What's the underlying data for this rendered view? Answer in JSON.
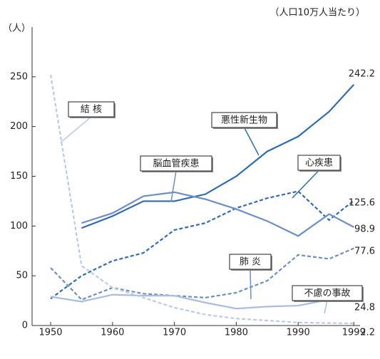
{
  "chart_data": {
    "type": "line",
    "annotations": [
      "（人口10万人当たり）",
      "（人）"
    ],
    "x": [
      1950,
      1955,
      1960,
      1965,
      1970,
      1975,
      1980,
      1985,
      1990,
      1995,
      1999
    ],
    "xlim": [
      1947,
      2000
    ],
    "xticks": [
      1950,
      1960,
      1970,
      1980,
      1990,
      1999
    ],
    "ylim": [
      0,
      300
    ],
    "yticks": [
      0,
      50,
      100,
      150,
      200,
      250
    ],
    "series": [
      {
        "name": "悪性新生物",
        "color": "#2e6db4",
        "style": "solid",
        "values": [
          null,
          98,
          110,
          125,
          125,
          132,
          150,
          175,
          190,
          215,
          242.2
        ]
      },
      {
        "name": "心疾患",
        "color": "#2e6db4",
        "style": "dashed",
        "values": [
          27,
          50,
          65,
          73,
          96,
          103,
          118,
          128,
          135,
          106,
          125.6
        ]
      },
      {
        "name": "脳血管疾患",
        "color": "#6b8fcb",
        "style": "solid",
        "values": [
          null,
          103,
          113,
          130,
          134,
          127,
          117,
          105,
          90,
          112,
          98.9
        ]
      },
      {
        "name": "肺 炎",
        "color": "#6b8fcb",
        "style": "dashed",
        "values": [
          58,
          26,
          38,
          32,
          30,
          28,
          33,
          45,
          71,
          67,
          77.6
        ]
      },
      {
        "name": "不慮の事故",
        "color": "#a9bce3",
        "style": "solid",
        "values": [
          29,
          24,
          31,
          30,
          30,
          23,
          17,
          19,
          20,
          26,
          24.8
        ]
      },
      {
        "name": "結 核",
        "color": "#bccaea",
        "style": "dashed",
        "values": [
          252,
          60,
          38,
          28,
          18,
          11,
          7,
          5,
          3,
          2.5,
          2.2
        ]
      }
    ]
  }
}
